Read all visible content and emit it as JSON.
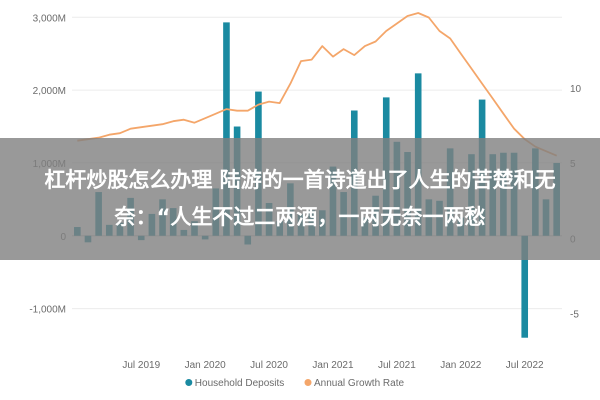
{
  "chart_data": {
    "type": "bar+line",
    "x": [
      "2019-01",
      "2019-02",
      "2019-03",
      "2019-04",
      "2019-05",
      "2019-06",
      "2019-07",
      "2019-08",
      "2019-09",
      "2019-10",
      "2019-11",
      "2019-12",
      "2020-01",
      "2020-02",
      "2020-03",
      "2020-04",
      "2020-05",
      "2020-06",
      "2020-07",
      "2020-08",
      "2020-09",
      "2020-10",
      "2020-11",
      "2020-12",
      "2021-01",
      "2021-02",
      "2021-03",
      "2021-04",
      "2021-05",
      "2021-06",
      "2021-07",
      "2021-08",
      "2021-09",
      "2021-10",
      "2021-11",
      "2021-12",
      "2022-01",
      "2022-02",
      "2022-03",
      "2022-04",
      "2022-05",
      "2022-06",
      "2022-07",
      "2022-08",
      "2022-09",
      "2022-10"
    ],
    "series": [
      {
        "name": "Household Deposits",
        "axis": "left",
        "type": "bar",
        "color": "#1a8aa1",
        "values": [
          120,
          -90,
          600,
          150,
          180,
          520,
          -60,
          300,
          500,
          380,
          80,
          200,
          -50,
          650,
          2930,
          1500,
          -120,
          1980,
          450,
          200,
          720,
          300,
          350,
          350,
          950,
          600,
          1720,
          250,
          550,
          1900,
          1290,
          1150,
          2230,
          500,
          480,
          1200,
          250,
          1120,
          1870,
          1120,
          1140,
          1140,
          -1400,
          1200,
          500,
          1000
        ]
      },
      {
        "name": "Annual Growth Rate",
        "axis": "right",
        "type": "line",
        "color": "#f4a66a",
        "values": [
          6.5,
          6.6,
          6.7,
          6.9,
          7.0,
          7.3,
          7.4,
          7.5,
          7.6,
          7.8,
          7.9,
          7.7,
          8.0,
          8.3,
          8.6,
          8.5,
          8.5,
          8.9,
          9.1,
          9.0,
          10.3,
          11.8,
          11.9,
          12.8,
          12.1,
          12.6,
          12.2,
          12.8,
          13.1,
          13.8,
          14.3,
          14.8,
          15.0,
          14.7,
          13.8,
          13.3,
          12.3,
          11.3,
          10.3,
          9.3,
          8.3,
          7.3,
          6.6,
          6.1,
          5.8,
          5.5
        ]
      }
    ],
    "left_axis": {
      "ticks": [
        "3,000M",
        "2,000M",
        "1,000M",
        "0",
        "-1,000M"
      ],
      "tick_values": [
        3000,
        2000,
        1000,
        0,
        -1000
      ],
      "range": [
        -1500,
        3100
      ]
    },
    "right_axis": {
      "ticks": [
        "10",
        "5",
        "0",
        "-5"
      ],
      "tick_values": [
        10,
        5,
        0,
        -5
      ],
      "range": [
        -7.1,
        15.2
      ]
    },
    "x_ticks": [
      {
        "label": "Jul 2019",
        "index": 6
      },
      {
        "label": "Jan 2020",
        "index": 12
      },
      {
        "label": "Jul 2020",
        "index": 18
      },
      {
        "label": "Jan 2021",
        "index": 24
      },
      {
        "label": "Jul 2021",
        "index": 30
      },
      {
        "label": "Jan 2022",
        "index": 36
      },
      {
        "label": "Jul 2022",
        "index": 42
      }
    ],
    "legend": {
      "placement": "bottom-center",
      "items": [
        "Household Deposits",
        "Annual Growth Rate"
      ]
    },
    "grid": true
  },
  "overlay": {
    "title": "杠杆炒股怎么办理 陆游的一首诗道出了人生的苦楚和无奈：“人生不过二两酒，一两无奈一两愁"
  }
}
